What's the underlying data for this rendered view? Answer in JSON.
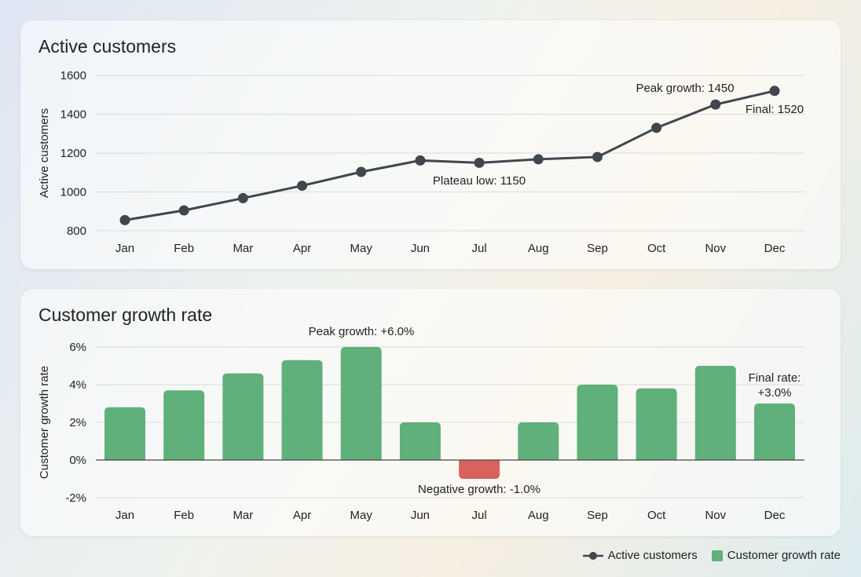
{
  "chart_data": [
    {
      "type": "line",
      "title": "Active customers",
      "ylabel": "Active customers",
      "xlabel": "",
      "categories": [
        "Jan",
        "Feb",
        "Mar",
        "Apr",
        "May",
        "Jun",
        "Jul",
        "Aug",
        "Sep",
        "Oct",
        "Nov",
        "Dec"
      ],
      "series": [
        {
          "name": "Active customers",
          "values": [
            855,
            905,
            968,
            1032,
            1103,
            1162,
            1150,
            1168,
            1180,
            1330,
            1450,
            1520
          ]
        }
      ],
      "ylim": [
        800,
        1600
      ],
      "yticks": [
        800,
        1000,
        1200,
        1400,
        1600
      ],
      "grid": true,
      "color": "#41464d",
      "annotations": [
        {
          "text": "Plateau low: 1150",
          "category": "Jul"
        },
        {
          "text": "Peak growth: 1450",
          "category": "Nov"
        },
        {
          "text": "Final: 1520",
          "category": "Dec"
        }
      ]
    },
    {
      "type": "bar",
      "title": "Customer growth rate",
      "ylabel": "Customer growth rate",
      "xlabel": "",
      "categories": [
        "Jan",
        "Feb",
        "Mar",
        "Apr",
        "May",
        "Jun",
        "Jul",
        "Aug",
        "Sep",
        "Oct",
        "Nov",
        "Dec"
      ],
      "series": [
        {
          "name": "Customer growth rate",
          "values": [
            2.8,
            3.7,
            4.6,
            5.3,
            6.0,
            2.0,
            -1.0,
            2.0,
            4.0,
            3.8,
            5.0,
            3.0
          ]
        }
      ],
      "ylim": [
        -2,
        6
      ],
      "yticks": [
        -2,
        0,
        2,
        4,
        6
      ],
      "ytick_labels": [
        "-2%",
        "0%",
        "2%",
        "4%",
        "6%"
      ],
      "grid": true,
      "positive_color": "#5fb07a",
      "negative_color": "#d9625e",
      "annotations": [
        {
          "text": "Peak growth: +6.0%",
          "category": "May"
        },
        {
          "text": "Negative growth: -1.0%",
          "category": "Jul"
        },
        {
          "text": "Final rate:",
          "text2": "+3.0%",
          "category": "Dec"
        }
      ]
    }
  ],
  "legend": {
    "placement": "bottom-right",
    "items": [
      "Active customers",
      "Customer growth rate"
    ]
  }
}
